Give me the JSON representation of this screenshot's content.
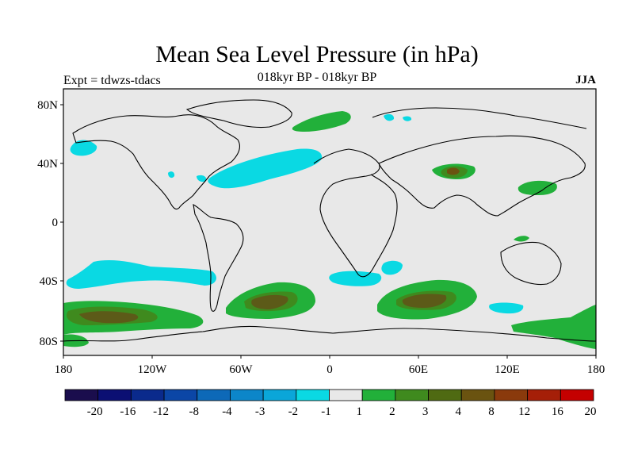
{
  "title": "Mean Sea Level Pressure (in hPa)",
  "experiment": "Expt = tdwzs-tdacs",
  "period": "018kyr BP - 018kyr BP",
  "season": "JJA",
  "lon_ticks": [
    "180",
    "120W",
    "60W",
    "0",
    "60E",
    "120E",
    "180"
  ],
  "lat_ticks": [
    "80N",
    "40N",
    "0",
    "40S",
    "80S"
  ],
  "colorbar": {
    "labels": [
      "-20",
      "-16",
      "-12",
      "-8",
      "-4",
      "-3",
      "-2",
      "-1",
      "1",
      "2",
      "3",
      "4",
      "8",
      "12",
      "16",
      "20"
    ],
    "colors": [
      "#1a0d4d",
      "#0b0f73",
      "#0a2a8c",
      "#0b46a6",
      "#0d69b8",
      "#0c86c9",
      "#0aa6d9",
      "#0ad9e3",
      "#e8e8e8",
      "#22b03a",
      "#3f8a1e",
      "#4f6a12",
      "#6a5310",
      "#8a3a0c",
      "#a51f08",
      "#c40000"
    ]
  },
  "map": {
    "ocean_color": "#e8e8e8",
    "positive_light": "#22b03a",
    "positive_mid": "#3f8a1e",
    "positive_dark": "#6a5310",
    "negative_light": "#0ad9e3"
  }
}
